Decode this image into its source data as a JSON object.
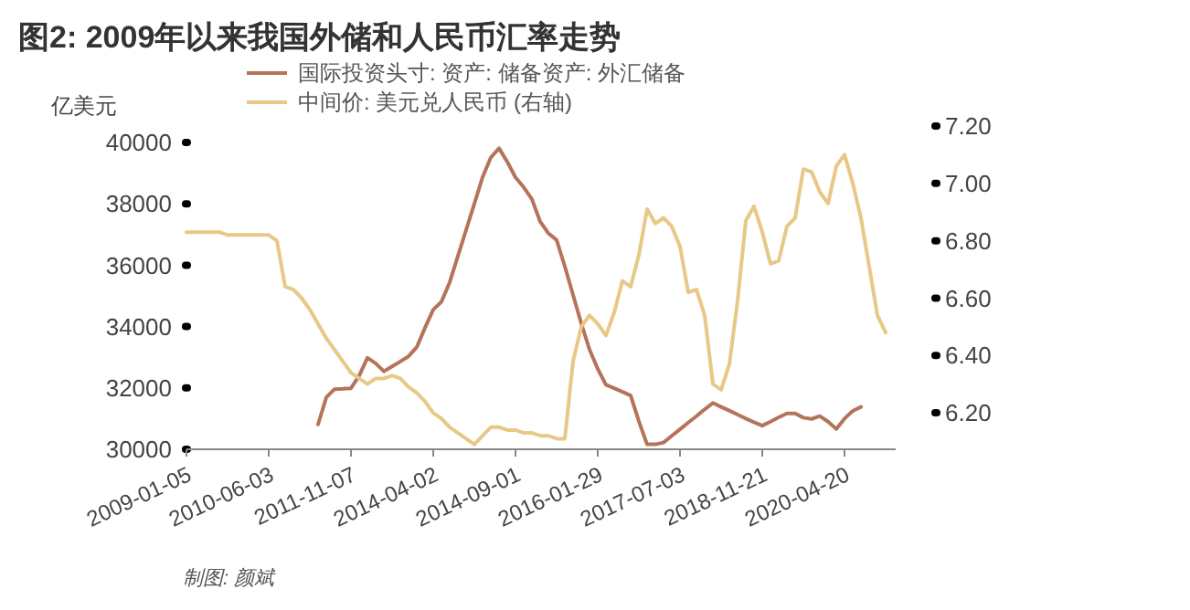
{
  "chart_data": {
    "type": "line",
    "title": "图2: 2009年以来我国外储和人民币汇率走势",
    "ylabel": "亿美元",
    "annotations": [
      "制图: 颜斌"
    ],
    "categories": [
      "2009-01-05",
      null,
      null,
      null,
      null,
      null,
      null,
      null,
      null,
      null,
      "2010-06-03",
      null,
      null,
      null,
      null,
      null,
      null,
      null,
      null,
      null,
      "2011-11-07",
      null,
      null,
      null,
      null,
      null,
      null,
      null,
      null,
      null,
      "2014-04-02",
      null,
      null,
      null,
      null,
      null,
      null,
      null,
      null,
      null,
      "2014-09-01",
      null,
      null,
      null,
      null,
      null,
      null,
      null,
      null,
      null,
      "2016-01-29",
      null,
      null,
      null,
      null,
      null,
      null,
      null,
      null,
      null,
      "2017-07-03",
      null,
      null,
      null,
      null,
      null,
      null,
      null,
      null,
      null,
      "2018-11-21",
      null,
      null,
      null,
      null,
      null,
      null,
      null,
      null,
      null,
      "2020-04-20",
      null,
      null,
      null,
      null,
      null,
      null
    ],
    "ylim": [
      30000,
      40000
    ],
    "yticks": [
      30000,
      32000,
      34000,
      36000,
      38000,
      40000
    ],
    "y2lim": [
      6.073,
      7.2
    ],
    "y2ticks": [
      {
        "value": 6.2,
        "label": "6.20"
      },
      {
        "value": 6.4,
        "label": "6.40"
      },
      {
        "value": 6.6,
        "label": "6.60"
      },
      {
        "value": 6.8,
        "label": "6.80"
      },
      {
        "value": 7.0,
        "label": "7.00"
      },
      {
        "value": 7.2,
        "label": "7.20"
      }
    ],
    "grid": false,
    "legend": "top",
    "marker": "none",
    "line_style": "solid",
    "series": [
      {
        "name": "国际投资头寸: 资产: 储备资产: 外汇储备",
        "color": "#b5735a",
        "values": [
          null,
          null,
          null,
          null,
          null,
          null,
          null,
          null,
          null,
          null,
          null,
          null,
          null,
          null,
          null,
          null,
          30810,
          31690,
          31960,
          31970,
          31990,
          32400,
          32980,
          32800,
          32540,
          32700,
          32860,
          33030,
          33330,
          33960,
          34550,
          34810,
          35440,
          36300,
          37150,
          38000,
          38870,
          39510,
          39810,
          39370,
          38860,
          38540,
          38150,
          37420,
          37040,
          36820,
          35960,
          35030,
          34100,
          33250,
          32620,
          32100,
          31990,
          31870,
          31750,
          30910,
          30160,
          30160,
          30220,
          30440,
          30650,
          30870,
          31080,
          31300,
          31510,
          31380,
          31260,
          31130,
          31000,
          30880,
          30770,
          30900,
          31040,
          31170,
          31170,
          31030,
          30990,
          31080,
          30900,
          30660,
          31000,
          31250,
          31380,
          null,
          null,
          null,
          null
        ]
      },
      {
        "name": "中间价: 美元兑人民币 (右轴)",
        "color": "#e8c886",
        "axis": "y2",
        "values": [
          6.83,
          6.83,
          6.83,
          6.83,
          6.83,
          6.82,
          6.82,
          6.82,
          6.82,
          6.82,
          6.82,
          6.8,
          6.64,
          6.63,
          6.6,
          6.56,
          6.51,
          6.46,
          6.42,
          6.38,
          6.34,
          6.32,
          6.3,
          6.32,
          6.32,
          6.33,
          6.32,
          6.29,
          6.27,
          6.24,
          6.2,
          6.18,
          6.15,
          6.13,
          6.11,
          6.09,
          6.12,
          6.15,
          6.15,
          6.14,
          6.14,
          6.13,
          6.13,
          6.12,
          6.12,
          6.11,
          6.11,
          6.38,
          6.5,
          6.54,
          6.51,
          6.47,
          6.55,
          6.66,
          6.64,
          6.75,
          6.91,
          6.86,
          6.88,
          6.85,
          6.78,
          6.62,
          6.63,
          6.54,
          6.3,
          6.28,
          6.37,
          6.59,
          6.87,
          6.92,
          6.83,
          6.72,
          6.73,
          6.85,
          6.88,
          7.05,
          7.04,
          6.97,
          6.93,
          7.06,
          7.1,
          7.0,
          6.88,
          6.71,
          6.54,
          6.48,
          null
        ]
      }
    ]
  }
}
